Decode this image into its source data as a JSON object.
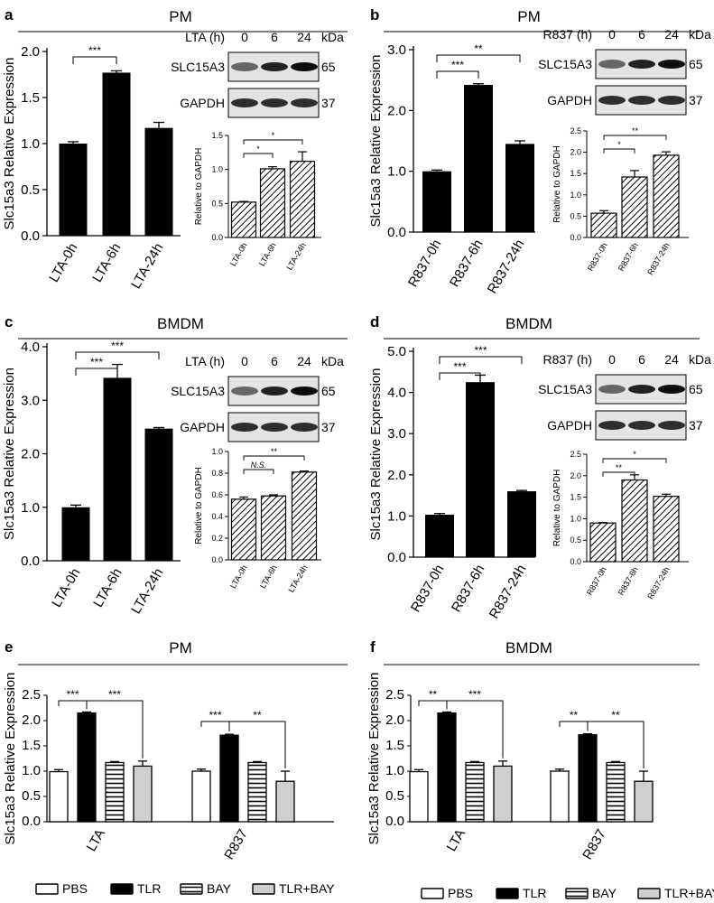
{
  "panels": [
    {
      "letter": "a",
      "title": "PM",
      "main": {
        "ylabel": "Slc15a3 Relative Expression",
        "ylim": [
          0,
          2.0
        ],
        "ticks": [
          "0.0",
          "0.5",
          "1.0",
          "1.5",
          "2.0"
        ],
        "tickvals": [
          0,
          0.5,
          1.0,
          1.5,
          2.0
        ],
        "categories": [
          "LTA-0h",
          "LTA-6h",
          "LTA-24h"
        ],
        "values": [
          1.0,
          1.77,
          1.17
        ],
        "errors": [
          0.02,
          0.02,
          0.06
        ],
        "sig": [
          {
            "from": 0,
            "to": 1,
            "label": "***"
          }
        ]
      },
      "blot": {
        "treatment": "LTA (h)",
        "times": [
          "0",
          "6",
          "24"
        ],
        "kda": "kDa",
        "rows": [
          {
            "protein": "SLC15A3",
            "size": "65"
          },
          {
            "protein": "GAPDH",
            "size": "37"
          }
        ]
      },
      "small": {
        "ylabel": "Relative to GAPDH",
        "ylim": [
          0,
          1.5
        ],
        "ticks": [
          "0.0",
          "0.5",
          "1.0",
          "1.5"
        ],
        "tickvals": [
          0,
          0.5,
          1.0,
          1.5
        ],
        "categories": [
          "LTA-0h",
          "LTA-6h",
          "LTA-24h"
        ],
        "values": [
          0.52,
          1.01,
          1.12
        ],
        "errors": [
          0.01,
          0.03,
          0.14
        ],
        "sig": [
          {
            "from": 0,
            "to": 1,
            "label": "*"
          },
          {
            "from": 0,
            "to": 2,
            "label": "*"
          }
        ]
      }
    },
    {
      "letter": "b",
      "title": "PM",
      "main": {
        "ylabel": "Slc15a3 Relative Expression",
        "ylim": [
          0,
          3.0
        ],
        "ticks": [
          "0.0",
          "1.0",
          "2.0",
          "3.0"
        ],
        "tickvals": [
          0,
          1,
          2,
          3
        ],
        "categories": [
          "R837-0h",
          "R837-6h",
          "R837-24h"
        ],
        "values": [
          1.0,
          2.42,
          1.45
        ],
        "errors": [
          0.02,
          0.02,
          0.05
        ],
        "sig": [
          {
            "from": 0,
            "to": 1,
            "label": "***"
          },
          {
            "from": 0,
            "to": 2,
            "label": "**"
          }
        ]
      },
      "blot": {
        "treatment": "R837 (h)",
        "times": [
          "0",
          "6",
          "24"
        ],
        "kda": "kDa",
        "rows": [
          {
            "protein": "SLC15A3",
            "size": "65"
          },
          {
            "protein": "GAPDH",
            "size": "37"
          }
        ]
      },
      "small": {
        "ylabel": "Relative to GAPDH",
        "ylim": [
          0,
          2.5
        ],
        "ticks": [
          "0.0",
          "0.5",
          "1.0",
          "1.5",
          "2.0",
          "2.5"
        ],
        "tickvals": [
          0,
          0.5,
          1.0,
          1.5,
          2.0,
          2.5
        ],
        "categories": [
          "R837-0h",
          "R837-6h",
          "R837-24h"
        ],
        "values": [
          0.57,
          1.42,
          1.93
        ],
        "errors": [
          0.06,
          0.15,
          0.08
        ],
        "sig": [
          {
            "from": 0,
            "to": 1,
            "label": "*"
          },
          {
            "from": 0,
            "to": 2,
            "label": "**"
          }
        ]
      }
    },
    {
      "letter": "c",
      "title": "BMDM",
      "main": {
        "ylabel": "Slc15a3 Relative Expression",
        "ylim": [
          0,
          4.0
        ],
        "ticks": [
          "0.0",
          "1.0",
          "2.0",
          "3.0",
          "4.0"
        ],
        "tickvals": [
          0,
          1,
          2,
          3,
          4
        ],
        "categories": [
          "LTA-0h",
          "LTA-6h",
          "LTA-24h"
        ],
        "values": [
          1.0,
          3.42,
          2.47
        ],
        "errors": [
          0.04,
          0.25,
          0.02
        ],
        "sig": [
          {
            "from": 0,
            "to": 1,
            "label": "***"
          },
          {
            "from": 0,
            "to": 2,
            "label": "***"
          }
        ]
      },
      "blot": {
        "treatment": "LTA (h)",
        "times": [
          "0",
          "6",
          "24"
        ],
        "kda": "kDa",
        "rows": [
          {
            "protein": "SLC15A3",
            "size": "65"
          },
          {
            "protein": "GAPDH",
            "size": "37"
          }
        ]
      },
      "small": {
        "ylabel": "Relative to GAPDH",
        "ylim": [
          0,
          1.0
        ],
        "ticks": [
          "0.0",
          "0.2",
          "0.4",
          "0.6",
          "0.8",
          "1.0"
        ],
        "tickvals": [
          0,
          0.2,
          0.4,
          0.6,
          0.8,
          1.0
        ],
        "categories": [
          "LTA-0h",
          "LTA-6h",
          "LTA-24h"
        ],
        "values": [
          0.56,
          0.59,
          0.81
        ],
        "errors": [
          0.02,
          0.01,
          0.01
        ],
        "sig": [
          {
            "from": 0,
            "to": 1,
            "label": "N.S.",
            "italic": true
          },
          {
            "from": 0,
            "to": 2,
            "label": "**"
          }
        ]
      }
    },
    {
      "letter": "d",
      "title": "BMDM",
      "main": {
        "ylabel": "Slc15a3 Relative Expression",
        "ylim": [
          0,
          5.0
        ],
        "ticks": [
          "0.0",
          "1.0",
          "2.0",
          "3.0",
          "4.0",
          "5.0"
        ],
        "tickvals": [
          0,
          1,
          2,
          3,
          4,
          5
        ],
        "categories": [
          "R837-0h",
          "R837-6h",
          "R837-24h"
        ],
        "values": [
          1.03,
          4.25,
          1.6
        ],
        "errors": [
          0.03,
          0.17,
          0.02
        ],
        "sig": [
          {
            "from": 0,
            "to": 1,
            "label": "***"
          },
          {
            "from": 0,
            "to": 2,
            "label": "***"
          }
        ]
      },
      "blot": {
        "treatment": "R837 (h)",
        "times": [
          "0",
          "6",
          "24"
        ],
        "kda": "kDa",
        "rows": [
          {
            "protein": "SLC15A3",
            "size": "65"
          },
          {
            "protein": "GAPDH",
            "size": "37"
          }
        ]
      },
      "small": {
        "ylabel": "Relative to GAPDH",
        "ylim": [
          0,
          2.5
        ],
        "ticks": [
          "0.0",
          "0.5",
          "1.0",
          "1.5",
          "2.0",
          "2.5"
        ],
        "tickvals": [
          0,
          0.5,
          1.0,
          1.5,
          2.0,
          2.5
        ],
        "categories": [
          "R837-0h",
          "R837-6h",
          "R837-24h"
        ],
        "values": [
          0.9,
          1.9,
          1.52
        ],
        "errors": [
          0.01,
          0.12,
          0.05
        ],
        "sig": [
          {
            "from": 0,
            "to": 1,
            "label": "**"
          },
          {
            "from": 0,
            "to": 2,
            "label": "*"
          }
        ]
      }
    }
  ],
  "groupPanels": [
    {
      "letter": "e",
      "title": "PM",
      "ylabel": "Slc15a3 Relative Expression",
      "ylim": [
        0,
        2.5
      ],
      "ticks": [
        "0.0",
        "0.5",
        "1.0",
        "1.5",
        "2.0",
        "2.5"
      ],
      "tickvals": [
        0,
        0.5,
        1.0,
        1.5,
        2.0,
        2.5
      ],
      "groups": [
        "LTA",
        "R837"
      ],
      "series": [
        {
          "name": "PBS",
          "values": [
            0.99,
            1.0
          ],
          "errors": [
            0.04,
            0.04
          ]
        },
        {
          "name": "TLR",
          "values": [
            2.15,
            1.71
          ],
          "errors": [
            0.02,
            0.02
          ]
        },
        {
          "name": "BAY",
          "values": [
            1.17,
            1.17
          ],
          "errors": [
            0.02,
            0.02
          ]
        },
        {
          "name": "TLR+BAY",
          "values": [
            1.1,
            0.8
          ],
          "errors": [
            0.1,
            0.2
          ]
        }
      ],
      "sig": [
        {
          "g": 0,
          "from": 0,
          "to": 1,
          "label": "***"
        },
        {
          "g": 0,
          "from": 1,
          "to": 3,
          "label": "***"
        },
        {
          "g": 1,
          "from": 0,
          "to": 1,
          "label": "***"
        },
        {
          "g": 1,
          "from": 1,
          "to": 3,
          "label": "**"
        }
      ]
    },
    {
      "letter": "f",
      "title": "BMDM",
      "ylabel": "Slc15a3 Relative Expression",
      "ylim": [
        0,
        2.5
      ],
      "ticks": [
        "0.0",
        "0.5",
        "1.0",
        "1.5",
        "2.0",
        "2.5"
      ],
      "tickvals": [
        0,
        0.5,
        1.0,
        1.5,
        2.0,
        2.5
      ],
      "groups": [
        "LTA",
        "R837"
      ],
      "series": [
        {
          "name": "PBS",
          "values": [
            0.99,
            1.0
          ],
          "errors": [
            0.04,
            0.04
          ]
        },
        {
          "name": "TLR",
          "values": [
            2.15,
            1.72
          ],
          "errors": [
            0.02,
            0.02
          ]
        },
        {
          "name": "BAY",
          "values": [
            1.17,
            1.17
          ],
          "errors": [
            0.02,
            0.02
          ]
        },
        {
          "name": "TLR+BAY",
          "values": [
            1.1,
            0.8
          ],
          "errors": [
            0.1,
            0.2
          ]
        }
      ],
      "sig": [
        {
          "g": 0,
          "from": 0,
          "to": 1,
          "label": "**"
        },
        {
          "g": 0,
          "from": 1,
          "to": 3,
          "label": "***"
        },
        {
          "g": 1,
          "from": 0,
          "to": 1,
          "label": "**"
        },
        {
          "g": 1,
          "from": 1,
          "to": 3,
          "label": "**"
        }
      ]
    }
  ],
  "legendColors": {
    "PBS": "#ffffff",
    "TLR": "#000000",
    "BAY": "stripes-h",
    "TLR+BAY": "#cfcfcf"
  },
  "chart_data": [
    {
      "type": "bar",
      "title": "PM (a)",
      "categories": [
        "LTA-0h",
        "LTA-6h",
        "LTA-24h"
      ],
      "values": [
        1.0,
        1.77,
        1.17
      ],
      "ylabel": "Slc15a3 Relative Expression",
      "ylim": [
        0,
        2.0
      ]
    },
    {
      "type": "bar",
      "title": "PM (a, inset)",
      "categories": [
        "LTA-0h",
        "LTA-6h",
        "LTA-24h"
      ],
      "values": [
        0.52,
        1.01,
        1.12
      ],
      "ylabel": "Relative to GAPDH",
      "ylim": [
        0,
        1.5
      ]
    },
    {
      "type": "bar",
      "title": "PM (b)",
      "categories": [
        "R837-0h",
        "R837-6h",
        "R837-24h"
      ],
      "values": [
        1.0,
        2.42,
        1.45
      ],
      "ylabel": "Slc15a3 Relative Expression",
      "ylim": [
        0,
        3.0
      ]
    },
    {
      "type": "bar",
      "title": "PM (b, inset)",
      "categories": [
        "R837-0h",
        "R837-6h",
        "R837-24h"
      ],
      "values": [
        0.57,
        1.42,
        1.93
      ],
      "ylabel": "Relative to GAPDH",
      "ylim": [
        0,
        2.5
      ]
    },
    {
      "type": "bar",
      "title": "BMDM (c)",
      "categories": [
        "LTA-0h",
        "LTA-6h",
        "LTA-24h"
      ],
      "values": [
        1.0,
        3.42,
        2.47
      ],
      "ylabel": "Slc15a3 Relative Expression",
      "ylim": [
        0,
        4.0
      ]
    },
    {
      "type": "bar",
      "title": "BMDM (c, inset)",
      "categories": [
        "LTA-0h",
        "LTA-6h",
        "LTA-24h"
      ],
      "values": [
        0.56,
        0.59,
        0.81
      ],
      "ylabel": "Relative to GAPDH",
      "ylim": [
        0,
        1.0
      ]
    },
    {
      "type": "bar",
      "title": "BMDM (d)",
      "categories": [
        "R837-0h",
        "R837-6h",
        "R837-24h"
      ],
      "values": [
        1.03,
        4.25,
        1.6
      ],
      "ylabel": "Slc15a3 Relative Expression",
      "ylim": [
        0,
        5.0
      ]
    },
    {
      "type": "bar",
      "title": "BMDM (d, inset)",
      "categories": [
        "R837-0h",
        "R837-6h",
        "R837-24h"
      ],
      "values": [
        0.9,
        1.9,
        1.52
      ],
      "ylabel": "Relative to GAPDH",
      "ylim": [
        0,
        2.5
      ]
    },
    {
      "type": "bar",
      "title": "PM (e)",
      "categories": [
        "LTA",
        "R837"
      ],
      "series": [
        {
          "name": "PBS",
          "values": [
            0.99,
            1.0
          ]
        },
        {
          "name": "TLR",
          "values": [
            2.15,
            1.71
          ]
        },
        {
          "name": "BAY",
          "values": [
            1.17,
            1.17
          ]
        },
        {
          "name": "TLR+BAY",
          "values": [
            1.1,
            0.8
          ]
        }
      ],
      "ylabel": "Slc15a3 Relative Expression",
      "ylim": [
        0,
        2.5
      ]
    },
    {
      "type": "bar",
      "title": "BMDM (f)",
      "categories": [
        "LTA",
        "R837"
      ],
      "series": [
        {
          "name": "PBS",
          "values": [
            0.99,
            1.0
          ]
        },
        {
          "name": "TLR",
          "values": [
            2.15,
            1.72
          ]
        },
        {
          "name": "BAY",
          "values": [
            1.17,
            1.17
          ]
        },
        {
          "name": "TLR+BAY",
          "values": [
            1.1,
            0.8
          ]
        }
      ],
      "ylabel": "Slc15a3 Relative Expression",
      "ylim": [
        0,
        2.5
      ]
    }
  ]
}
